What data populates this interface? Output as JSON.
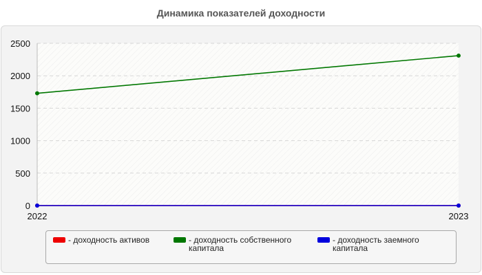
{
  "chart_data": {
    "type": "line",
    "title": "Динамика показателей доходности",
    "x": [
      "2022",
      "2023"
    ],
    "ylim": [
      0,
      2500
    ],
    "yticks": [
      0,
      500,
      1000,
      1500,
      2000,
      2500
    ],
    "grid": true,
    "legend_position": "bottom",
    "series": [
      {
        "name": "- доходность активов",
        "color": "#ee0000",
        "values": [
          0,
          0
        ]
      },
      {
        "name": "- доходность собственного капитала",
        "color": "#007700",
        "values": [
          1730,
          2310
        ]
      },
      {
        "name": "- доходность заемного капитала",
        "color": "#0000dd",
        "values": [
          0,
          0
        ]
      }
    ]
  }
}
